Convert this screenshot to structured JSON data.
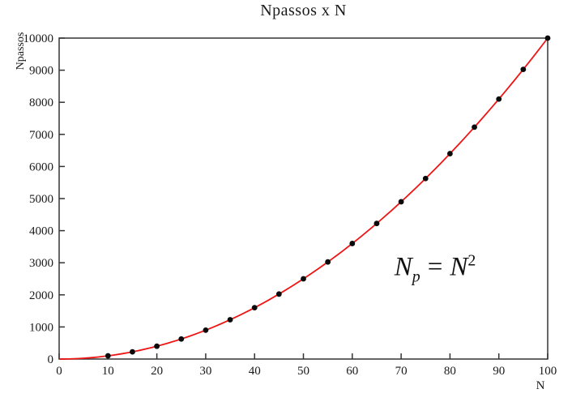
{
  "page": {
    "background": "#ffffff"
  },
  "chart_data": {
    "type": "line",
    "title": "Npassos x N",
    "xlabel": "N",
    "ylabel": "Npassos",
    "xlim": [
      0,
      100
    ],
    "ylim": [
      0,
      10000
    ],
    "x_ticks": [
      0,
      10,
      20,
      30,
      40,
      50,
      60,
      70,
      80,
      90,
      100
    ],
    "y_ticks": [
      0,
      1000,
      2000,
      3000,
      4000,
      5000,
      6000,
      7000,
      8000,
      9000,
      10000
    ],
    "grid": false,
    "legend_position": "none",
    "axis_color": "#333333",
    "tick_label_color": "#1a1a1a",
    "series": [
      {
        "name": "Np = N^2 curve",
        "type": "line",
        "color": "#ee1515",
        "stroke_width": 1.8,
        "curve": {
          "kind": "power",
          "exponent": 2,
          "x_min": 0,
          "x_max": 100,
          "samples": 101
        }
      },
      {
        "name": "data points",
        "type": "scatter",
        "color": "#0a0a0a",
        "marker": "filled-circle",
        "marker_radius": 3.4,
        "x": [
          10,
          15,
          20,
          25,
          30,
          35,
          40,
          45,
          50,
          55,
          60,
          65,
          70,
          75,
          80,
          85,
          90,
          95,
          100
        ],
        "y": [
          100,
          225,
          400,
          625,
          900,
          1225,
          1600,
          2025,
          2500,
          3025,
          3600,
          4225,
          4900,
          5625,
          6400,
          7225,
          8100,
          9025,
          10000
        ]
      }
    ],
    "annotation": {
      "text": "N_p = N^2",
      "x": 77,
      "y": 2800
    }
  },
  "annotation_parts": {
    "lhs_base": "N",
    "lhs_sub": "p",
    "rel": "=",
    "rhs_base": "N",
    "rhs_sup": "2"
  }
}
